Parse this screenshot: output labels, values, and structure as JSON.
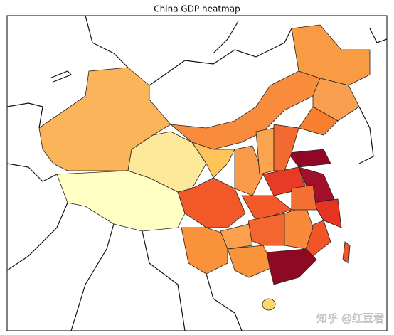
{
  "title": "China GDP heatmap",
  "watermark": "知乎 @红豆君"
}
